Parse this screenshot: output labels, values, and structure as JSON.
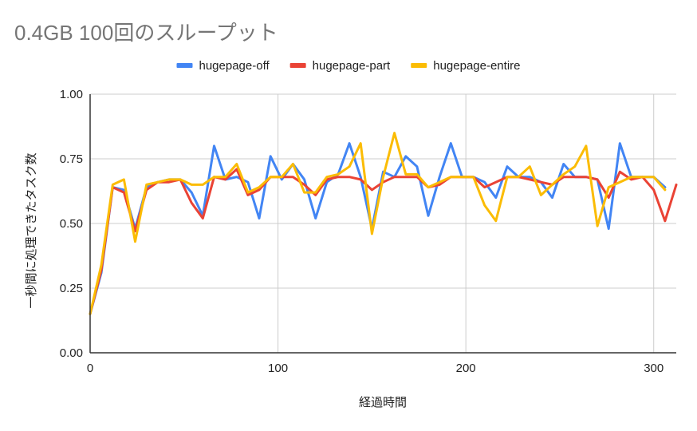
{
  "title": "0.4GB 100回のスループット",
  "chart_data": {
    "type": "line",
    "title": "0.4GB 100回のスループット",
    "xlabel": "経過時間",
    "ylabel": "一秒間に処理できたタスク数",
    "xlim": [
      0,
      312
    ],
    "ylim": [
      0,
      1
    ],
    "x_ticks": [
      0,
      100,
      200,
      300
    ],
    "x_tick_labels": [
      "0",
      "100",
      "200",
      "300"
    ],
    "y_ticks": [
      0,
      0.25,
      0.5,
      0.75,
      1
    ],
    "y_tick_labels": [
      "0.00",
      "0.25",
      "0.50",
      "0.75",
      "1.00"
    ],
    "grid": true,
    "legend_position": "top",
    "x": [
      0,
      6,
      12,
      18,
      24,
      30,
      36,
      42,
      48,
      54,
      60,
      66,
      72,
      78,
      84,
      90,
      96,
      102,
      108,
      114,
      120,
      126,
      132,
      138,
      144,
      150,
      156,
      162,
      168,
      174,
      180,
      186,
      192,
      198,
      204,
      210,
      216,
      222,
      228,
      234,
      240,
      246,
      252,
      258,
      264,
      270,
      276,
      282,
      288,
      294,
      300,
      306,
      312
    ],
    "series": [
      {
        "name": "hugepage-off",
        "color": "#4285F4",
        "values": [
          0.15,
          0.31,
          0.64,
          0.63,
          0.48,
          0.64,
          0.66,
          0.67,
          0.67,
          0.62,
          0.53,
          0.8,
          0.67,
          0.68,
          0.66,
          0.52,
          0.76,
          0.67,
          0.73,
          0.67,
          0.52,
          0.66,
          0.69,
          0.81,
          0.68,
          0.48,
          0.7,
          0.68,
          0.76,
          0.72,
          0.53,
          0.68,
          0.81,
          0.68,
          0.68,
          0.66,
          0.6,
          0.72,
          0.68,
          0.68,
          0.66,
          0.6,
          0.73,
          0.68,
          0.68,
          0.67,
          0.48,
          0.81,
          0.68,
          0.68,
          0.68,
          0.64,
          null
        ]
      },
      {
        "name": "hugepage-part",
        "color": "#EA4335",
        "values": [
          0.15,
          0.32,
          0.64,
          0.62,
          0.47,
          0.63,
          0.66,
          0.66,
          0.67,
          0.58,
          0.52,
          0.68,
          0.67,
          0.71,
          0.61,
          0.63,
          0.68,
          0.68,
          0.68,
          0.65,
          0.61,
          0.67,
          0.68,
          0.68,
          0.67,
          0.63,
          0.66,
          0.68,
          0.68,
          0.68,
          0.64,
          0.65,
          0.68,
          0.68,
          0.68,
          0.64,
          0.66,
          0.68,
          0.68,
          0.67,
          0.66,
          0.65,
          0.68,
          0.68,
          0.68,
          0.67,
          0.6,
          0.7,
          0.67,
          0.68,
          0.63,
          0.51,
          0.65
        ]
      },
      {
        "name": "hugepage-entire",
        "color": "#FBBC04",
        "values": [
          0.15,
          0.34,
          0.65,
          0.67,
          0.43,
          0.65,
          0.66,
          0.67,
          0.67,
          0.65,
          0.65,
          0.68,
          0.68,
          0.73,
          0.62,
          0.64,
          0.68,
          0.68,
          0.73,
          0.62,
          0.62,
          0.68,
          0.69,
          0.72,
          0.81,
          0.46,
          0.68,
          0.85,
          0.69,
          0.69,
          0.64,
          0.66,
          0.68,
          0.68,
          0.68,
          0.57,
          0.51,
          0.68,
          0.68,
          0.72,
          0.61,
          0.65,
          0.69,
          0.72,
          0.8,
          0.49,
          0.64,
          0.66,
          0.68,
          0.68,
          0.68,
          0.63,
          null
        ]
      }
    ]
  }
}
